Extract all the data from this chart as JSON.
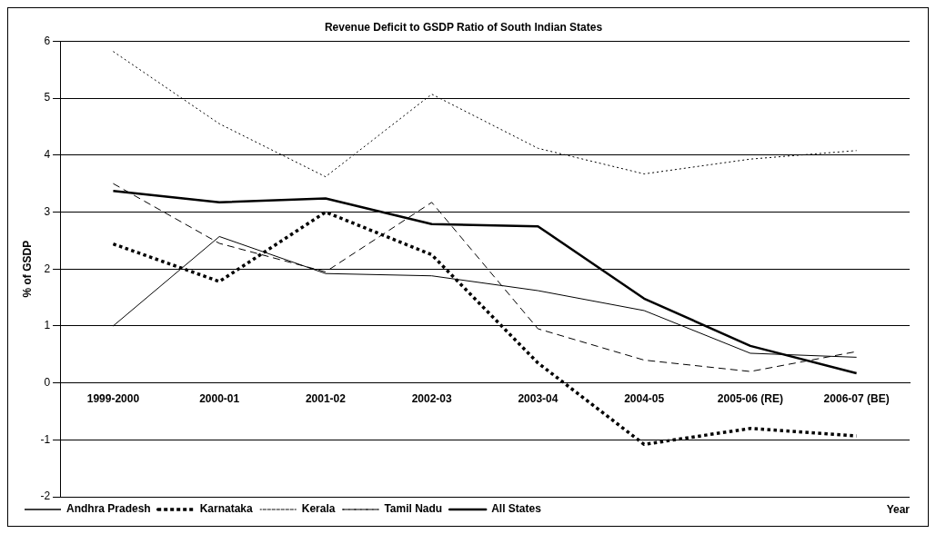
{
  "chart_data": {
    "type": "line",
    "title": "Revenue Deficit to GSDP Ratio of South Indian States",
    "xlabel": "Year",
    "ylabel": "% of GSDP",
    "categories": [
      "1999-2000",
      "2000-01",
      "2001-02",
      "2002-03",
      "2003-04",
      "2004-05",
      "2005-06 (RE)",
      "2006-07 (BE)"
    ],
    "series": [
      {
        "name": "Andhra Pradesh",
        "color": "#000000",
        "line_style": "solid",
        "values": [
          1.0,
          2.57,
          1.92,
          1.88,
          1.62,
          1.27,
          0.52,
          0.45
        ]
      },
      {
        "name": "Karnataka",
        "color": "#000000",
        "line_style": "dotted",
        "values": [
          2.44,
          1.78,
          3.0,
          2.25,
          0.35,
          -1.08,
          -0.8,
          -0.93
        ]
      },
      {
        "name": "Kerala",
        "color": "#000000",
        "line_style": "dotted",
        "values": [
          5.82,
          4.55,
          3.62,
          5.07,
          4.12,
          3.67,
          3.93,
          4.08
        ]
      },
      {
        "name": "Tamil Nadu",
        "color": "#000000",
        "line_style": "dashed",
        "values": [
          3.5,
          2.45,
          1.95,
          3.17,
          0.95,
          0.4,
          0.2,
          0.55
        ]
      },
      {
        "name": "All States",
        "color": "#000000",
        "line_style": "solid",
        "values": [
          3.37,
          3.17,
          3.24,
          2.79,
          2.75,
          1.48,
          0.65,
          0.17
        ]
      }
    ],
    "ylim": [
      -2,
      6
    ],
    "yticks": [
      -2,
      -1,
      0,
      1,
      2,
      3,
      4,
      5,
      6
    ],
    "grid": "y",
    "legend": "bottom",
    "marker": "none"
  }
}
